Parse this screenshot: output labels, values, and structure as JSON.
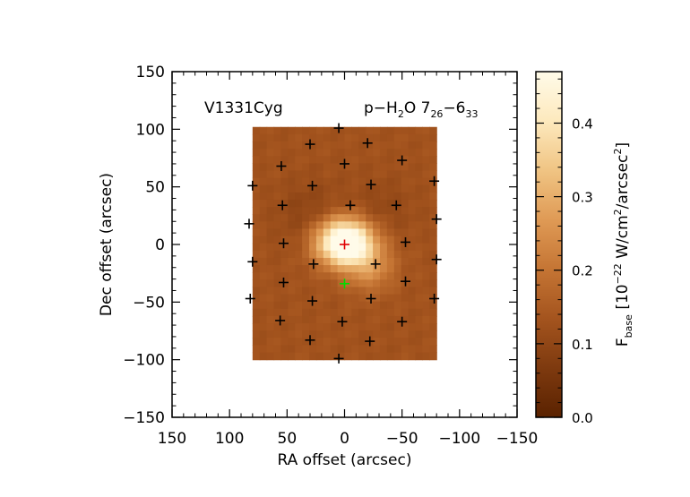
{
  "chart_data": {
    "type": "heatmap",
    "source_label": "V1331Cyg",
    "line_label": {
      "species_prefix": "p−H",
      "h2_sub": "2",
      "species_suffix": "O 7",
      "j_upper_sub": "26",
      "dash": "−6",
      "j_lower_sub": "33"
    },
    "xlabel": "RA offset (arcsec)",
    "ylabel": "Dec offset (arcsec)",
    "xlim": [
      150,
      -150
    ],
    "ylim": [
      -150,
      150
    ],
    "xticks": [
      150,
      100,
      50,
      0,
      -50,
      -100,
      -150
    ],
    "xtick_labels": [
      "150",
      "100",
      "50",
      "0",
      "−50",
      "−100",
      "−150"
    ],
    "yticks": [
      150,
      100,
      50,
      0,
      -50,
      -100,
      -150
    ],
    "ytick_labels": [
      "150",
      "100",
      "50",
      "0",
      "−50",
      "−100",
      "−150"
    ],
    "map_extent": {
      "x": [
        80,
        -80
      ],
      "y": [
        -100,
        102
      ]
    },
    "colorbar": {
      "range": [
        0.0,
        0.47
      ],
      "ticks": [
        0.0,
        0.1,
        0.2,
        0.3,
        0.4
      ],
      "tick_labels": [
        "0.0",
        "0.1",
        "0.2",
        "0.3",
        "0.4"
      ],
      "label": {
        "f": "F",
        "f_sub": "base",
        "bracket_open": " [10",
        "exp": "−22",
        "unit1": " W/cm",
        "exp2": "2",
        "unit2": "/arcsec",
        "exp3": "2",
        "bracket_close": "]"
      },
      "colormap": [
        "#5a2200",
        "#7e3a0f",
        "#a4541e",
        "#c57534",
        "#df9a55",
        "#f0c483",
        "#fde9bd",
        "#fffbe9"
      ]
    },
    "peak": {
      "x": 0,
      "y": 2,
      "value": 0.45,
      "sigma_x": 17,
      "sigma_y": 14
    },
    "secondary": {
      "x": -22,
      "y": -20,
      "value": 0.11,
      "sigma": 15
    },
    "background": 0.13,
    "dark_lanes": [
      {
        "x": 30,
        "y": 25,
        "value": -0.04,
        "sigma": 20
      },
      {
        "x": -32,
        "y": 30,
        "value": -0.03,
        "sigma": 18
      }
    ],
    "spaxels_black": [
      [
        5,
        101
      ],
      [
        -20,
        88
      ],
      [
        30,
        87
      ],
      [
        -50,
        73
      ],
      [
        0,
        70
      ],
      [
        55,
        68
      ],
      [
        -78,
        55
      ],
      [
        -23,
        52
      ],
      [
        28,
        51
      ],
      [
        80,
        51
      ],
      [
        -5,
        34
      ],
      [
        -45,
        34
      ],
      [
        54,
        34
      ],
      [
        -80,
        22
      ],
      [
        83,
        18
      ],
      [
        -53,
        2
      ],
      [
        53,
        1
      ],
      [
        -80,
        -13
      ],
      [
        80,
        -15
      ],
      [
        27,
        -17
      ],
      [
        -27,
        -17
      ],
      [
        -53,
        -32
      ],
      [
        53,
        -33
      ],
      [
        -78,
        -47
      ],
      [
        -23,
        -47
      ],
      [
        28,
        -49
      ],
      [
        82,
        -47
      ],
      [
        -50,
        -67
      ],
      [
        2,
        -67
      ],
      [
        56,
        -66
      ],
      [
        -22,
        -84
      ],
      [
        30,
        -83
      ],
      [
        5,
        -99
      ]
    ],
    "spaxel_center": [
      0,
      0
    ],
    "spaxel_offset": [
      0,
      -34
    ],
    "marker_colors": {
      "grid": "#000000",
      "center": "#e00000",
      "offset": "#00dd00"
    }
  }
}
